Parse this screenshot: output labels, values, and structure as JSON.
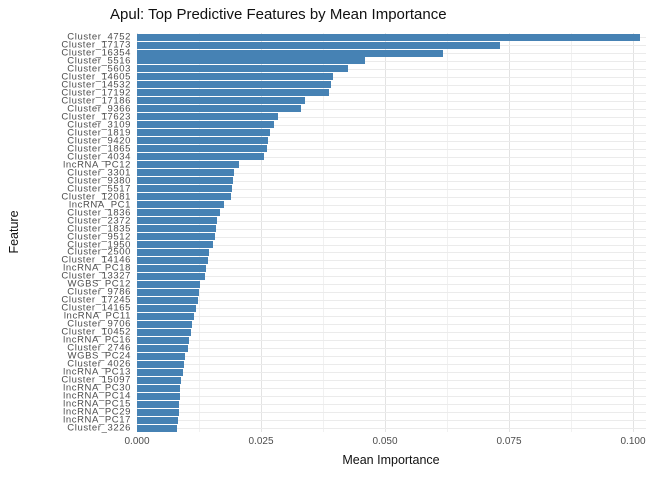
{
  "title": "Apul: Top Predictive Features by Mean Importance",
  "chart_data": {
    "type": "bar",
    "orientation": "horizontal",
    "title": "Apul: Top Predictive Features by Mean Importance",
    "xlabel": "Mean Importance",
    "ylabel": "Feature",
    "xlim": [
      0,
      0.1015
    ],
    "x_ticks": [
      0,
      0.025,
      0.05,
      0.075,
      0.1
    ],
    "x_tick_labels": [
      "0.000",
      "0.025",
      "0.050",
      "0.075",
      "0.100"
    ],
    "x_minor_ticks": [
      0.0125,
      0.0375,
      0.0625,
      0.0875
    ],
    "grid": true,
    "legend": "none",
    "bar_color": "#4682B4",
    "grid_major_color": "#e3e3e3",
    "grid_minor_color": "#f1f1f1",
    "axis_text_color": "#4d4d4d",
    "features": [
      {
        "label": "Cluster_4752",
        "value": 0.1015
      },
      {
        "label": "Cluster_17173",
        "value": 0.0732
      },
      {
        "label": "Cluster_16354",
        "value": 0.0617
      },
      {
        "label": "Cluster_5516",
        "value": 0.046
      },
      {
        "label": "Cluster_5603",
        "value": 0.0425
      },
      {
        "label": "Cluster_14605",
        "value": 0.0395
      },
      {
        "label": "Cluster_14532",
        "value": 0.0392
      },
      {
        "label": "Cluster_17192",
        "value": 0.0387
      },
      {
        "label": "Cluster_17186",
        "value": 0.0339
      },
      {
        "label": "Cluster_9366",
        "value": 0.0331
      },
      {
        "label": "Cluster_17623",
        "value": 0.0284
      },
      {
        "label": "Cluster_3109",
        "value": 0.0276
      },
      {
        "label": "Cluster_1819",
        "value": 0.0268
      },
      {
        "label": "Cluster_9420",
        "value": 0.0264
      },
      {
        "label": "Cluster_1865",
        "value": 0.0262
      },
      {
        "label": "Cluster_4034",
        "value": 0.0256
      },
      {
        "label": "lncRNA_PC12",
        "value": 0.0206
      },
      {
        "label": "Cluster_3301",
        "value": 0.0196
      },
      {
        "label": "Cluster_9380",
        "value": 0.0193
      },
      {
        "label": "Cluster_5517",
        "value": 0.0192
      },
      {
        "label": "Cluster_12081",
        "value": 0.0189
      },
      {
        "label": "lncRNA_PC1",
        "value": 0.0176
      },
      {
        "label": "Cluster_1836",
        "value": 0.0167
      },
      {
        "label": "Cluster_2372",
        "value": 0.0161
      },
      {
        "label": "Cluster_1835",
        "value": 0.0159
      },
      {
        "label": "Cluster_9512",
        "value": 0.0158
      },
      {
        "label": "Cluster_1950",
        "value": 0.0153
      },
      {
        "label": "Cluster_2500",
        "value": 0.0145
      },
      {
        "label": "Cluster_14146",
        "value": 0.0143
      },
      {
        "label": "lncRNA_PC18",
        "value": 0.0139
      },
      {
        "label": "Cluster_13327",
        "value": 0.0137
      },
      {
        "label": "WGBS_PC12",
        "value": 0.0127
      },
      {
        "label": "Cluster_9786",
        "value": 0.0125
      },
      {
        "label": "Cluster_17245",
        "value": 0.0123
      },
      {
        "label": "Cluster_14165",
        "value": 0.0118
      },
      {
        "label": "lncRNA_PC11",
        "value": 0.0115
      },
      {
        "label": "Cluster_9706",
        "value": 0.0111
      },
      {
        "label": "Cluster_10452",
        "value": 0.0109
      },
      {
        "label": "lncRNA_PC16",
        "value": 0.0105
      },
      {
        "label": "Cluster_2746",
        "value": 0.0103
      },
      {
        "label": "WGBS_PC24",
        "value": 0.0097
      },
      {
        "label": "Cluster_4026",
        "value": 0.0094
      },
      {
        "label": "lncRNA_PC13",
        "value": 0.0093
      },
      {
        "label": "Cluster_15097",
        "value": 0.0089
      },
      {
        "label": "lncRNA_PC30",
        "value": 0.0087
      },
      {
        "label": "lncRNA_PC14",
        "value": 0.0086
      },
      {
        "label": "lncRNA_PC15",
        "value": 0.0084
      },
      {
        "label": "lncRNA_PC29",
        "value": 0.0084
      },
      {
        "label": "lncRNA_PC17",
        "value": 0.0082
      },
      {
        "label": "Cluster_3226",
        "value": 0.0081
      }
    ]
  }
}
